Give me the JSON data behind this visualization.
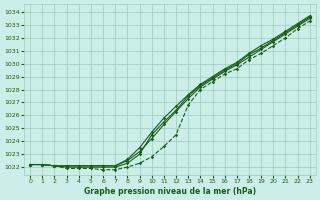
{
  "title": "Graphe pression niveau de la mer (hPa)",
  "bg_color": "#cceee8",
  "grid_color": "#99ccbb",
  "line_color": "#1a5c1a",
  "xlim": [
    -0.5,
    23.5
  ],
  "ylim": [
    1021.4,
    1034.6
  ],
  "yticks": [
    1022,
    1023,
    1024,
    1025,
    1026,
    1027,
    1028,
    1029,
    1030,
    1031,
    1032,
    1033,
    1034
  ],
  "xticks": [
    0,
    1,
    2,
    3,
    4,
    5,
    6,
    7,
    8,
    9,
    10,
    11,
    12,
    13,
    14,
    15,
    16,
    17,
    18,
    19,
    20,
    21,
    22,
    23
  ],
  "series": [
    {
      "data": [
        1022.2,
        1022.2,
        1022.1,
        1022.1,
        1022.1,
        1022.1,
        1022.1,
        1022.1,
        1022.5,
        1023.2,
        1024.2,
        1025.3,
        1026.3,
        1027.3,
        1028.2,
        1028.8,
        1029.4,
        1029.9,
        1030.5,
        1031.1,
        1031.7,
        1032.3,
        1032.9,
        1033.5
      ],
      "style": "solid"
    },
    {
      "data": [
        1022.2,
        1022.2,
        1022.1,
        1022.1,
        1022.1,
        1022.1,
        1022.1,
        1022.1,
        1022.6,
        1023.5,
        1024.7,
        1025.8,
        1026.7,
        1027.6,
        1028.4,
        1029.0,
        1029.6,
        1030.1,
        1030.8,
        1031.4,
        1031.9,
        1032.5,
        1033.1,
        1033.7
      ],
      "style": "solid"
    },
    {
      "data": [
        1022.2,
        1022.2,
        1022.1,
        1022.0,
        1022.0,
        1022.0,
        1022.0,
        1022.0,
        1022.3,
        1023.0,
        1024.5,
        1025.5,
        1026.4,
        1027.5,
        1028.3,
        1028.9,
        1029.5,
        1030.0,
        1030.7,
        1031.2,
        1031.8,
        1032.4,
        1033.0,
        1033.6
      ],
      "style": "solid"
    },
    {
      "data": [
        1022.2,
        1022.2,
        1022.1,
        1021.9,
        1021.9,
        1021.9,
        1021.8,
        1021.8,
        1022.0,
        1022.3,
        1022.8,
        1023.6,
        1024.5,
        1026.8,
        1028.0,
        1028.6,
        1029.2,
        1029.6,
        1030.3,
        1030.8,
        1031.4,
        1032.0,
        1032.7,
        1033.3
      ],
      "style": "dashed"
    }
  ]
}
